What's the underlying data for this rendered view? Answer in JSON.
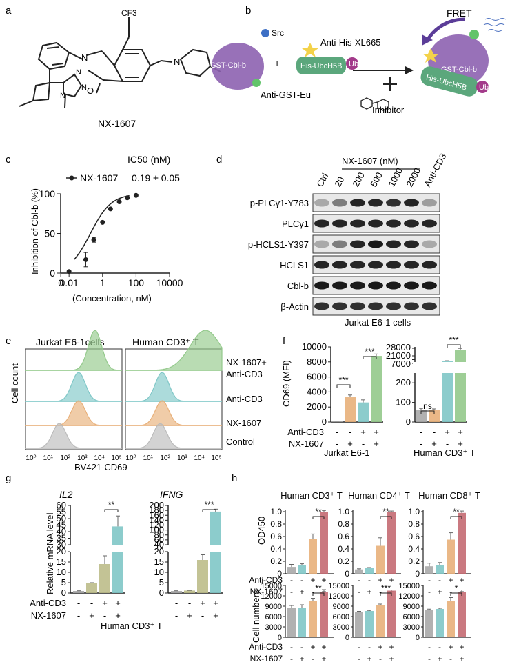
{
  "panel_letters": [
    "a",
    "b",
    "c",
    "d",
    "e",
    "f",
    "g",
    "h"
  ],
  "a": {
    "compound": "NX-1607",
    "atoms": {
      "cf3": "CF3",
      "o": "O",
      "n_indoline": "N",
      "n_piperidine": "N",
      "n_triazole_1": "N",
      "n_triazole_2": "N",
      "n_triazole_3": "N"
    }
  },
  "b": {
    "src": "Src",
    "gst_cblb": "GST-Cbl-b",
    "anti_gst_eu": "Anti-GST-Eu",
    "plus": "+",
    "anti_his": "Anti-His-XL665",
    "his_ubch5b": "His-UbcH5B",
    "ub": "Ub",
    "inhibitor": "Inhibitor",
    "fret": "FRET"
  },
  "c": {
    "ic50_header": "IC50 (nM)",
    "ylabel": "Inhibition of Cbl-b (%)",
    "xlabel": "(Concentration, nM)",
    "yticks": [
      "0",
      "50",
      "100"
    ],
    "xticks": [
      "0",
      "0.01",
      "1",
      "100",
      "10000"
    ],
    "legend_name": "NX-1607",
    "legend_value": "0.19 ± 0.05"
  },
  "d": {
    "header": "NX-1607 (nM)",
    "lanes": [
      "Ctrl",
      "20",
      "200",
      "500",
      "1000",
      "2000",
      "Anti-CD3"
    ],
    "rows": [
      "p-PLCγ1-Y783",
      "PLCγ1",
      "p-HCLS1-Y397",
      "HCLS1",
      "Cbl-b",
      "β-Actin"
    ],
    "caption": "Jurkat E6-1 cells"
  },
  "e": {
    "col1": "Jurkat E6-1cells",
    "col2": "Human CD3⁺ T",
    "ylabel": "Cell count",
    "xlabel": "BV421-CD69",
    "rows": [
      "NX-1607+\nAnti-CD3",
      "Anti-CD3",
      "NX-1607",
      "Control"
    ],
    "xticks": [
      "10⁰",
      "10¹",
      "10²",
      "10³",
      "10⁴",
      "10⁵"
    ]
  },
  "f": {
    "ylabel": "CD69 (MFI)",
    "left_yticks": [
      "0",
      "2000",
      "4000",
      "6000",
      "8000",
      "10000"
    ],
    "right_yticks_low": [
      "0",
      "100",
      "200"
    ],
    "right_yticks_high": [
      "2800",
      "7000",
      "14000",
      "21000",
      "28000"
    ],
    "row_labels": [
      "Anti-CD3",
      "NX-1607"
    ],
    "signs_anti": [
      "-",
      "-",
      "+",
      "+"
    ],
    "signs_nx": [
      "-",
      "+",
      "-",
      "+"
    ],
    "left_group": "Jurkat E6-1",
    "right_group": "Human CD3⁺ T",
    "sig_left_1": "***",
    "sig_left_2": "***",
    "sig_right_1": "ns",
    "sig_right_2": "***"
  },
  "g": {
    "ylabel": "Relative mRNA level",
    "gene1": "IL2",
    "gene2": "IFNG",
    "ticks_il2_low": [
      "0",
      "5",
      "10",
      "15",
      "20"
    ],
    "ticks_il2_high": [
      "30",
      "35",
      "40",
      "45",
      "50",
      "55",
      "60"
    ],
    "ticks_ifng_low": [
      "0",
      "5",
      "10",
      "15",
      "20"
    ],
    "ticks_ifng_high": [
      "40",
      "60",
      "80",
      "100",
      "120",
      "140",
      "160",
      "180",
      "200"
    ],
    "row_labels": [
      "Anti-CD3",
      "NX-1607"
    ],
    "signs_anti": [
      "-",
      "-",
      "+",
      "+"
    ],
    "signs_nx": [
      "-",
      "+",
      "-",
      "+"
    ],
    "sig1": "**",
    "sig2": "***",
    "group": "Human CD3⁺ T"
  },
  "h": {
    "titles": [
      "Human CD3⁺ T",
      "Human CD4⁺ T",
      "Human CD8⁺ T"
    ],
    "ylabel_top": "OD450",
    "ylabel_bottom": "Cell numbers",
    "top_yticks": [
      "0",
      "0.2",
      "0.4",
      "0.6",
      "0.8",
      "1.0"
    ],
    "bottom_yticks_1": [
      "0",
      "3000",
      "6000",
      "9000",
      "12000",
      "15000"
    ],
    "bottom_yticks_2": [
      "0",
      "3000",
      "6000",
      "9000",
      "12000",
      "15000"
    ],
    "bottom_yticks_3": [
      "0",
      "3000",
      "6000",
      "9000",
      "12000",
      "15000"
    ],
    "row_labels": [
      "Anti-CD3",
      "NX-1607"
    ],
    "signs_anti": [
      "-",
      "-",
      "+",
      "+"
    ],
    "signs_nx": [
      "-",
      "+",
      "-",
      "+"
    ],
    "sig_top": [
      "**",
      "**",
      "**"
    ],
    "sig_bottom": [
      "**",
      "***",
      "*"
    ]
  },
  "colors": {
    "grey": "#a9a9a9",
    "blue": "#7ab8c4",
    "orange": "#e8b07a",
    "red": "#c46a72",
    "green_f": "#93c98b",
    "teal_g": "#7fc7c7",
    "olive_g": "#bdbd8a",
    "purple": "#8d62b0",
    "green_protein": "#5ba77c"
  },
  "chart_data": [
    {
      "panel": "c",
      "type": "scatter",
      "ylabel": "Inhibition of Cbl-b (%)",
      "xlabel": "(Concentration, nM)",
      "series": [
        {
          "name": "NX-1607",
          "x": [
            0.01,
            0.1,
            0.3,
            1,
            3,
            10,
            30,
            100
          ],
          "y": [
            2,
            17,
            42,
            64,
            81,
            90,
            95,
            98
          ],
          "err": [
            0,
            9,
            3,
            0,
            0,
            0,
            0,
            0
          ]
        }
      ],
      "ylim": [
        0,
        100
      ]
    },
    {
      "panel": "f-left",
      "type": "bar",
      "title": "Jurkat E6-1",
      "ylabel": "CD69 (MFI)",
      "values": [
        100,
        3300,
        2600,
        8800
      ],
      "err": [
        30,
        300,
        350,
        250
      ],
      "ylim": [
        0,
        10000
      ]
    },
    {
      "panel": "f-right",
      "type": "bar",
      "title": "Human CD3⁺ T",
      "values": [
        60,
        62,
        4500,
        23000
      ],
      "err": [
        10,
        5,
        500,
        2500
      ]
    },
    {
      "panel": "g-IL2",
      "type": "bar",
      "title": "IL2",
      "ylabel": "Relative mRNA level",
      "values": [
        1,
        4.7,
        14,
        44
      ],
      "err": [
        0.1,
        0.3,
        4,
        8
      ]
    },
    {
      "panel": "g-IFNG",
      "type": "bar",
      "title": "IFNG",
      "values": [
        1,
        1.2,
        16,
        175
      ],
      "err": [
        0.1,
        0.1,
        2.5,
        10
      ]
    },
    {
      "panel": "h-OD450",
      "type": "bar",
      "ylabel": "OD450",
      "series": [
        {
          "name": "Human CD3⁺ T",
          "values": [
            0.11,
            0.14,
            0.56,
            1.0
          ],
          "err": [
            0.04,
            0.02,
            0.08,
            0.02
          ]
        },
        {
          "name": "Human CD4⁺ T",
          "values": [
            0.07,
            0.09,
            0.45,
            1.0
          ],
          "err": [
            0.01,
            0.01,
            0.13,
            0.01
          ]
        },
        {
          "name": "Human CD8⁺ T",
          "values": [
            0.12,
            0.14,
            0.55,
            0.98
          ],
          "err": [
            0.05,
            0.04,
            0.11,
            0.03
          ]
        }
      ]
    },
    {
      "panel": "h-cellnumbers",
      "type": "bar",
      "ylabel": "Cell numbers",
      "series": [
        {
          "name": "Human CD3⁺ T",
          "values": [
            8500,
            8600,
            10400,
            13200
          ],
          "err": [
            700,
            800,
            900,
            600
          ]
        },
        {
          "name": "Human CD4⁺ T",
          "values": [
            7400,
            7600,
            9200,
            13500
          ],
          "err": [
            100,
            150,
            400,
            200
          ]
        },
        {
          "name": "Human CD8⁺ T",
          "values": [
            8000,
            8200,
            10600,
            13000
          ],
          "err": [
            150,
            200,
            900,
            700
          ]
        }
      ]
    }
  ]
}
